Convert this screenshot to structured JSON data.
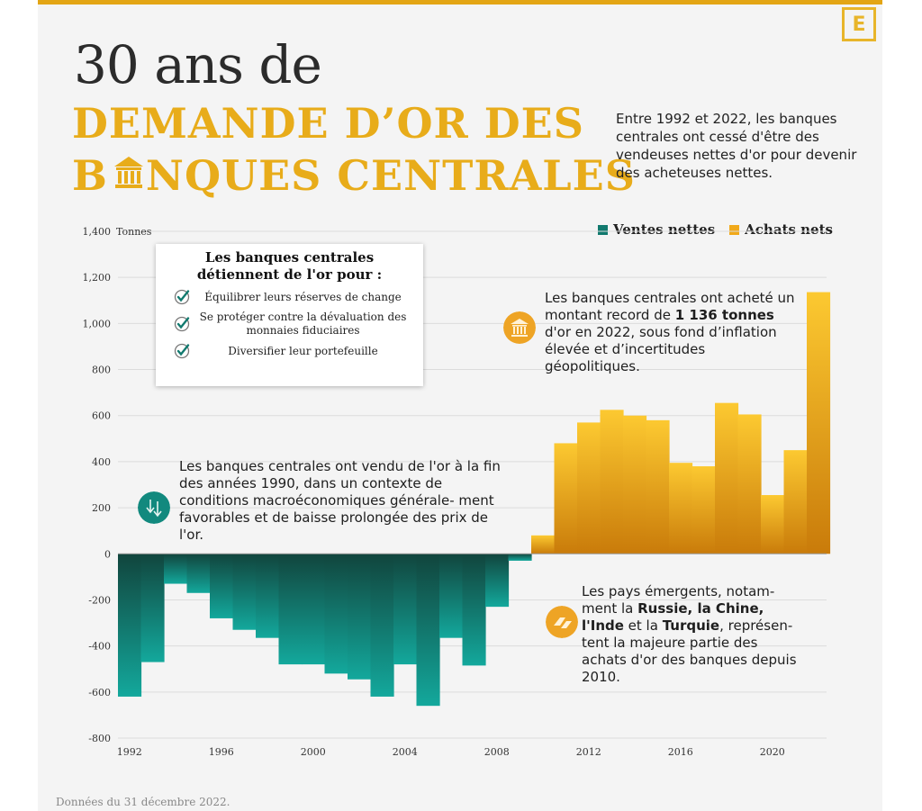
{
  "logo_letter": "E",
  "title": {
    "line1": "30 ans de",
    "line2": "DEMANDE D’OR DES",
    "line3_a": "B",
    "line3_b": "NQUES CENTRALES"
  },
  "intro": "Entre 1992 et 2022, les banques centrales ont cessé d'être des vendeuses nettes d'or pour devenir des acheteuses nettes.",
  "source": "Données du 31 décembre 2022.",
  "reasons_box": {
    "title": "Les banques centrales détiennent de l'or pour :",
    "items": [
      "Équilibrer leurs réserves de change",
      "Se protéger contre la dévaluation des monnaies fiduciaires",
      "Diversifier leur portefeuille"
    ]
  },
  "annotations": {
    "sales": "Les banques centrales ont vendu de l'or à la fin des années 1990, dans un contexte de conditions macroéconomiques générale- ment favorables et de baisse prolongée des prix de l'or.",
    "record_pre": "Les banques centrales ont acheté un montant record de ",
    "record_bold": "1 136 tonnes",
    "record_post": " d'or en 2022, sous fond d’inflation élevée et d’incertitudes géopolitiques.",
    "emerging_1": "Les pays émergents, notam- ment la ",
    "emerging_b1": "Russie, la Chine, l'Inde",
    "emerging_2": " et la ",
    "emerging_b2": "Turquie",
    "emerging_3": ", représen- tent la majeure partie des achats d'or des banques depuis 2010."
  },
  "colors": {
    "gold_top": "#fcc931",
    "gold_bottom": "#c97b0a",
    "teal_top": "#11453d",
    "teal_bottom": "#13a89c",
    "title_gold": "#e8ac1a"
  },
  "chart_data": {
    "type": "bar",
    "unit_label": "Tonnes",
    "ylim": [
      -800,
      1400
    ],
    "yticks": [
      -800,
      -600,
      -400,
      -200,
      0,
      200,
      400,
      600,
      800,
      1000,
      1200,
      1400
    ],
    "ytick_labels": [
      "-800",
      "-600",
      "-400",
      "-200",
      "0",
      "200",
      "400",
      "600",
      "800",
      "1,000",
      "1,200",
      "1,400"
    ],
    "xtick_labels": [
      "1992",
      "1996",
      "2000",
      "2004",
      "2008",
      "2012",
      "2016",
      "2020"
    ],
    "xticks": [
      1992,
      1996,
      2000,
      2004,
      2008,
      2012,
      2016,
      2020
    ],
    "grid": true,
    "legend_position": "top-right",
    "series": [
      {
        "name": "Ventes nettes",
        "color": "#11796e"
      },
      {
        "name": "Achats nets",
        "color": "#f1a91a"
      }
    ],
    "years": [
      1992,
      1993,
      1994,
      1995,
      1996,
      1997,
      1998,
      1999,
      2000,
      2001,
      2002,
      2003,
      2004,
      2005,
      2006,
      2007,
      2008,
      2009,
      2010,
      2011,
      2012,
      2013,
      2014,
      2015,
      2016,
      2017,
      2018,
      2019,
      2020,
      2021,
      2022
    ],
    "values": [
      -620,
      -470,
      -130,
      -170,
      -280,
      -330,
      -365,
      -480,
      -480,
      -520,
      -545,
      -620,
      -480,
      -660,
      -365,
      -485,
      -230,
      -30,
      80,
      480,
      570,
      625,
      600,
      580,
      395,
      380,
      655,
      605,
      255,
      450,
      1136
    ]
  }
}
